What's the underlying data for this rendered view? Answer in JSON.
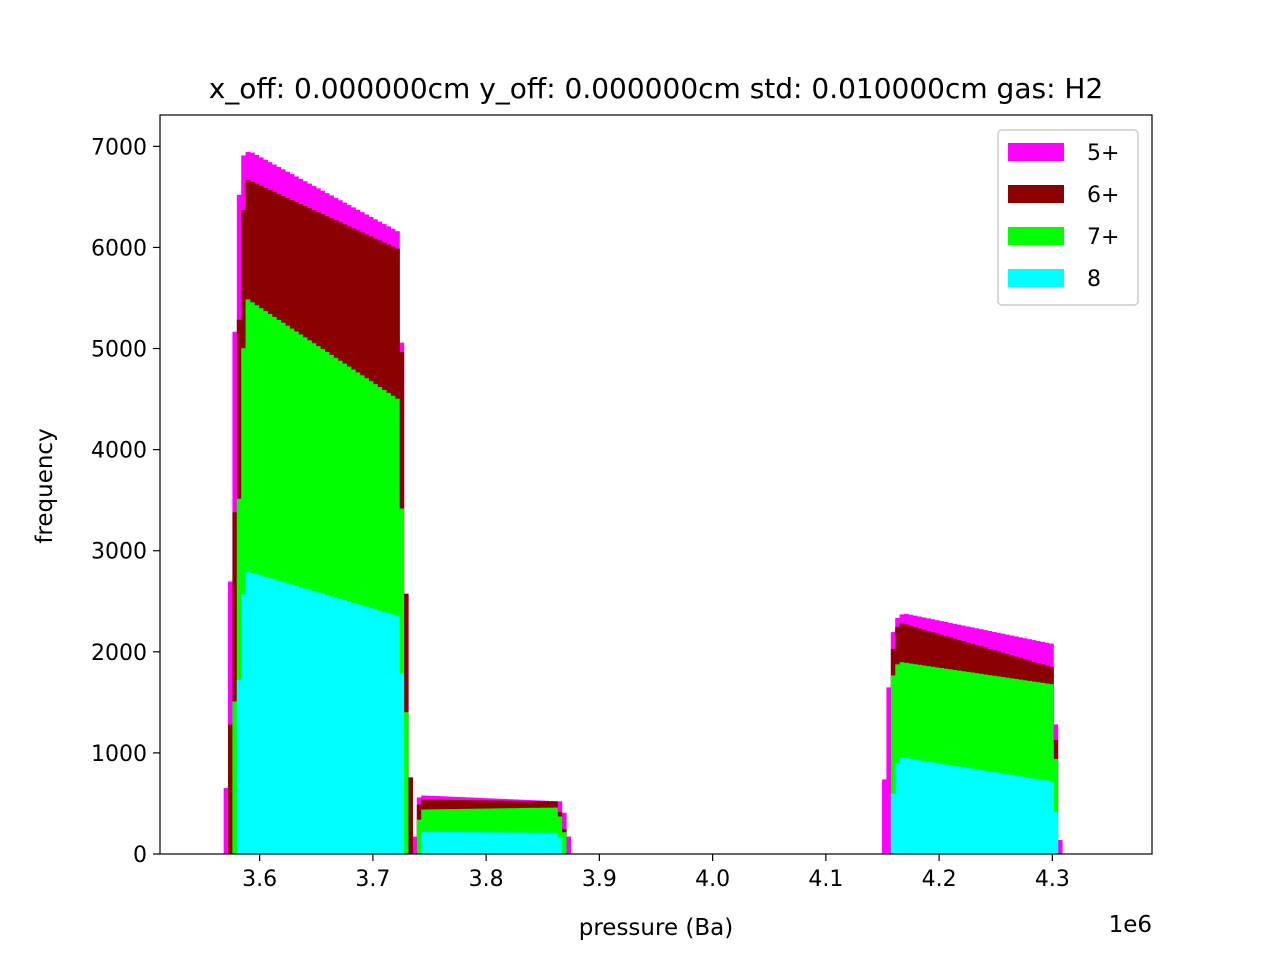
{
  "chart_data": {
    "type": "bar",
    "title": "x_off: 0.000000cm y_off: 0.000000cm std: 0.010000cm gas: H2",
    "xlabel": "pressure (Ba)",
    "ylabel": "frequency",
    "x_offset_label": "1e6",
    "xlim": [
      3.512,
      4.388
    ],
    "ylim": [
      0,
      7310
    ],
    "x_ticks": [
      3.6,
      3.7,
      3.8,
      3.9,
      4.0,
      4.1,
      4.2,
      4.3
    ],
    "x_tick_labels": [
      "3.6",
      "3.7",
      "3.8",
      "3.9",
      "4.0",
      "4.1",
      "4.2",
      "4.3"
    ],
    "y_ticks": [
      0,
      1000,
      2000,
      3000,
      4000,
      5000,
      6000,
      7000
    ],
    "y_tick_labels": [
      "0",
      "1000",
      "2000",
      "3000",
      "4000",
      "5000",
      "6000",
      "7000"
    ],
    "grid": false,
    "legend_position": "top-right",
    "series": [
      {
        "name": "5+",
        "color": "#ff00ff",
        "segments": [
          {
            "x": [
              3.5682,
              3.5721,
              3.5759,
              3.5798,
              3.5837,
              3.5876,
              3.5914,
              3.7232,
              3.7271,
              3.731,
              3.7349,
              3.7388
            ],
            "y": [
              80,
              1230,
              4130,
              6150,
              6880,
              6940,
              6950,
              6150,
              4160,
              1230,
              300,
              60
            ]
          },
          {
            "x": [
              3.7388,
              3.7427,
              3.8667,
              3.8706,
              3.8745
            ],
            "y": [
              540,
              580,
              520,
              310,
              50
            ]
          },
          {
            "x": [
              4.1496,
              4.1535,
              4.1574,
              4.1612,
              4.1651,
              4.169,
              4.2992,
              4.3031,
              4.307
            ],
            "y": [
              250,
              1230,
              2080,
              2310,
              2360,
              2380,
              2080,
              1230,
              60
            ]
          }
        ]
      },
      {
        "name": "6+",
        "color": "#8b0000",
        "segments": [
          {
            "x": [
              3.5721,
              3.5759,
              3.5798,
              3.5837,
              3.5876,
              3.7232,
              3.7271,
              3.731,
              3.7349
            ],
            "y": [
              320,
              2200,
              4480,
              6050,
              6680,
              5980,
              4150,
              1280,
              320
            ]
          },
          {
            "x": [
              3.7388,
              3.7427,
              3.8629,
              3.8667,
              3.8706
            ],
            "y": [
              440,
              540,
              520,
              320,
              180
            ]
          },
          {
            "x": [
              4.1574,
              4.1612,
              4.1651,
              4.2992,
              4.3031
            ],
            "y": [
              1850,
              2200,
              2290,
              1850,
              1090
            ]
          }
        ]
      },
      {
        "name": "7+",
        "color": "#00ff00",
        "segments": [
          {
            "x": [
              3.5759,
              3.5798,
              3.5837,
              3.5876,
              3.7232,
              3.7271,
              3.731
            ],
            "y": [
              500,
              2530,
              4530,
              5500,
              4490,
              2480,
              440
            ]
          },
          {
            "x": [
              3.7388,
              3.7427,
              3.8629,
              3.8667,
              3.8706
            ],
            "y": [
              240,
              440,
              460,
              290,
              150
            ]
          },
          {
            "x": [
              4.1574,
              4.1612,
              4.1651,
              4.2992,
              4.3031
            ],
            "y": [
              1680,
              1850,
              1900,
              1680,
              900
            ]
          }
        ]
      },
      {
        "name": "8",
        "color": "#00ffff",
        "segments": [
          {
            "x": [
              3.5798,
              3.5837,
              3.5876,
              3.7232,
              3.7271
            ],
            "y": [
              1100,
              2350,
              2800,
              2350,
              1300
            ]
          },
          {
            "x": [
              3.7427,
              3.8629,
              3.8667
            ],
            "y": [
              220,
              210,
              120
            ]
          },
          {
            "x": [
              4.1574,
              4.1612,
              4.1651,
              4.2992,
              4.3031
            ],
            "y": [
              340,
              840,
              960,
              720,
              400
            ]
          }
        ]
      }
    ]
  }
}
